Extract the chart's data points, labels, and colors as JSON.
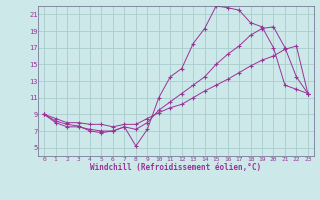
{
  "xlabel": "Windchill (Refroidissement éolien,°C)",
  "background_color": "#cce8e8",
  "grid_color": "#aacccc",
  "line_color": "#993399",
  "xlim": [
    -0.5,
    23.5
  ],
  "ylim": [
    4,
    22
  ],
  "xticks": [
    0,
    1,
    2,
    3,
    4,
    5,
    6,
    7,
    8,
    9,
    10,
    11,
    12,
    13,
    14,
    15,
    16,
    17,
    18,
    19,
    20,
    21,
    22,
    23
  ],
  "yticks": [
    5,
    7,
    9,
    11,
    13,
    15,
    17,
    19,
    21
  ],
  "line1_x": [
    0,
    1,
    2,
    3,
    4,
    5,
    6,
    7,
    8,
    9,
    10,
    11,
    12,
    13,
    14,
    15,
    16,
    17,
    18,
    19,
    20,
    21,
    22,
    23
  ],
  "line1_y": [
    9.0,
    8.2,
    7.8,
    7.6,
    7.0,
    6.8,
    7.0,
    7.5,
    5.2,
    7.2,
    11.0,
    13.5,
    14.5,
    17.5,
    19.3,
    22.0,
    21.8,
    21.5,
    20.0,
    19.5,
    17.0,
    12.5,
    12.0,
    11.5
  ],
  "line2_x": [
    0,
    1,
    2,
    3,
    4,
    5,
    6,
    7,
    8,
    9,
    10,
    11,
    12,
    13,
    14,
    15,
    16,
    17,
    18,
    19,
    20,
    21,
    22,
    23
  ],
  "line2_y": [
    9.0,
    8.0,
    7.5,
    7.5,
    7.2,
    7.0,
    7.0,
    7.5,
    7.2,
    8.0,
    9.5,
    10.5,
    11.5,
    12.5,
    13.5,
    15.0,
    16.2,
    17.2,
    18.5,
    19.3,
    19.5,
    17.0,
    13.5,
    11.5
  ],
  "line3_x": [
    0,
    1,
    2,
    3,
    4,
    5,
    6,
    7,
    8,
    9,
    10,
    11,
    12,
    13,
    14,
    15,
    16,
    17,
    18,
    19,
    20,
    21,
    22,
    23
  ],
  "line3_y": [
    9.0,
    8.5,
    8.0,
    8.0,
    7.8,
    7.8,
    7.5,
    7.8,
    7.8,
    8.5,
    9.2,
    9.8,
    10.2,
    11.0,
    11.8,
    12.5,
    13.2,
    14.0,
    14.8,
    15.5,
    16.0,
    16.8,
    17.2,
    11.5
  ]
}
